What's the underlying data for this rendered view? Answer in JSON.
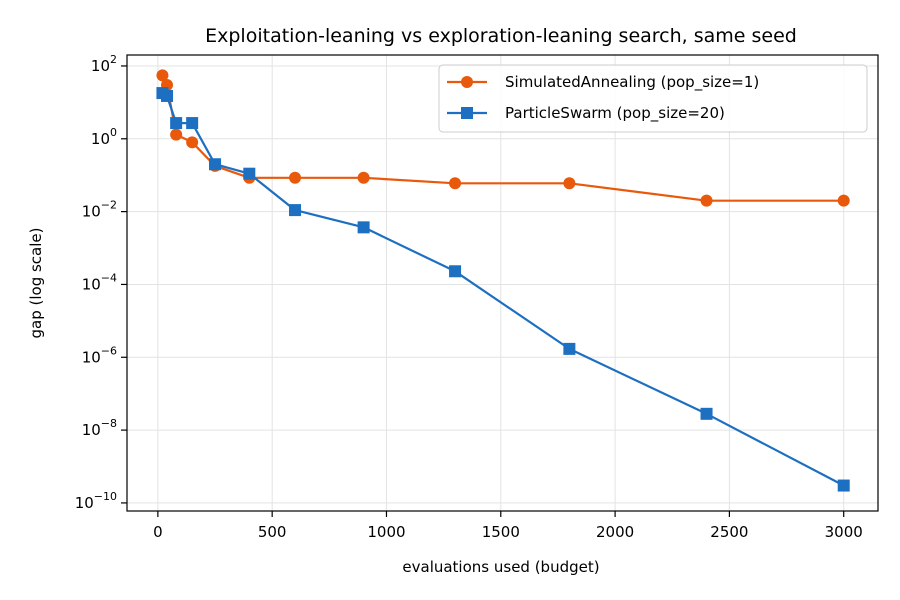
{
  "chart_data": {
    "type": "line",
    "title": "Exploitation-leaning vs exploration-leaning search, same seed",
    "xlabel": "evaluations used (budget)",
    "ylabel": "gap (log scale)",
    "xlim": [
      -135,
      3150
    ],
    "ylim": [
      6e-11,
      200
    ],
    "yscale": "log",
    "grid": true,
    "legend_position": "top-right",
    "xticks": [
      0,
      500,
      1000,
      1500,
      2000,
      2500,
      3000
    ],
    "xtick_labels": [
      "0",
      "500",
      "1000",
      "1500",
      "2000",
      "2500",
      "3000"
    ],
    "yticks": [
      1e-10,
      1e-08,
      1e-06,
      0.0001,
      0.01,
      1,
      100
    ],
    "ytick_labels": [
      {
        "base": "10",
        "exp": "−10"
      },
      {
        "base": "10",
        "exp": "−8"
      },
      {
        "base": "10",
        "exp": "−6"
      },
      {
        "base": "10",
        "exp": "−4"
      },
      {
        "base": "10",
        "exp": "−2"
      },
      {
        "base": "10",
        "exp": "0"
      },
      {
        "base": "10",
        "exp": "2"
      }
    ],
    "series": [
      {
        "name": "SimulatedAnnealing (pop_size=1)",
        "color": "#e8590c",
        "marker": "circle",
        "x": [
          20,
          40,
          80,
          150,
          250,
          400,
          600,
          900,
          1300,
          1800,
          2400,
          3000
        ],
        "y": [
          55,
          30,
          1.3,
          0.8,
          0.18,
          0.085,
          0.085,
          0.085,
          0.06,
          0.06,
          0.02,
          0.02
        ]
      },
      {
        "name": "ParticleSwarm (pop_size=20)",
        "color": "#1c6fc1",
        "marker": "square",
        "x": [
          20,
          40,
          80,
          150,
          250,
          400,
          600,
          900,
          1300,
          1800,
          2400,
          3000
        ],
        "y": [
          18,
          15,
          2.7,
          2.7,
          0.2,
          0.11,
          0.011,
          0.0037,
          0.00023,
          1.7e-06,
          2.8e-08,
          3e-10
        ]
      }
    ]
  }
}
